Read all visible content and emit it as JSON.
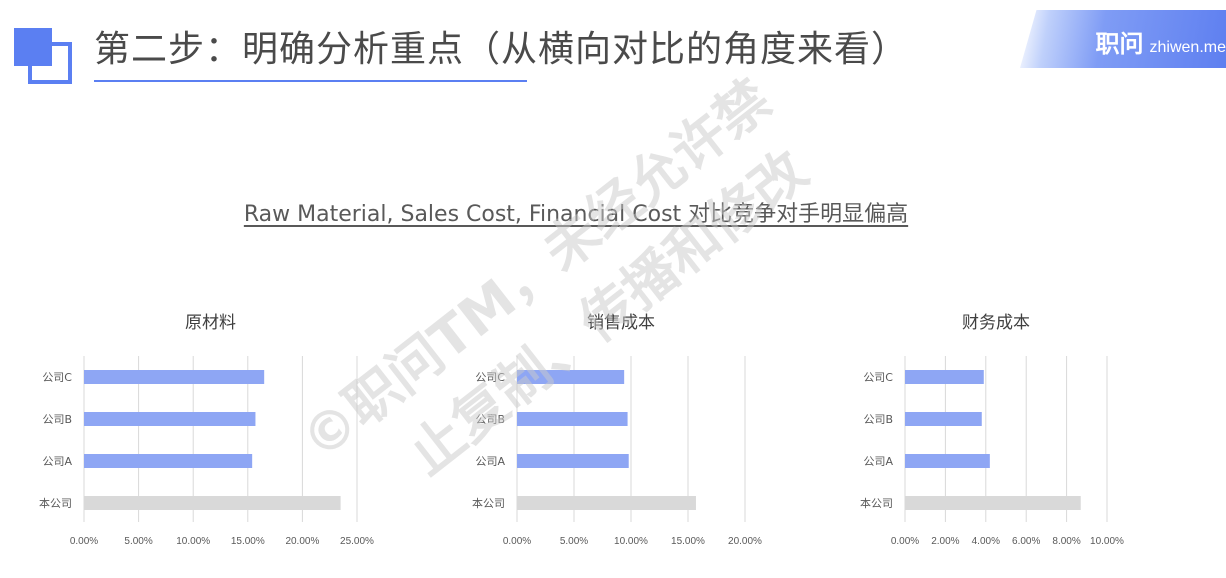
{
  "header": {
    "title": "第二步：明确分析重点（从横向对比的角度来看）",
    "brand_cn": "职问",
    "brand_en": "zhiwen.me"
  },
  "subtitle": "Raw Material, Sales Cost, Financial Cost 对比竞争对手明显偏高",
  "watermark": {
    "line1": "©职问TM，未经允许禁",
    "line2": "止复制、传播和修改"
  },
  "colors": {
    "accent": "#5b7ff2",
    "competitor_bar": "#8ea6f4",
    "own_bar": "#d9d9d9",
    "gridline": "#d9d9d9",
    "text": "#595959"
  },
  "chart_data": [
    {
      "type": "bar",
      "title": "原材料",
      "categories": [
        "公司C",
        "公司B",
        "公司A",
        "本公司"
      ],
      "values": [
        16.5,
        15.7,
        15.4,
        23.5
      ],
      "unit": "%",
      "xlim": [
        0,
        25
      ],
      "ticks": [
        0,
        5,
        10,
        15,
        20,
        25
      ],
      "tick_labels": [
        "0.00%",
        "5.00%",
        "10.00%",
        "15.00%",
        "20.00%",
        "25.00%"
      ],
      "grid": true,
      "orientation": "horizontal"
    },
    {
      "type": "bar",
      "title": "销售成本",
      "categories": [
        "公司C",
        "公司B",
        "公司A",
        "本公司"
      ],
      "values": [
        9.4,
        9.7,
        9.8,
        15.7
      ],
      "unit": "%",
      "xlim": [
        0,
        20
      ],
      "ticks": [
        0,
        5,
        10,
        15,
        20
      ],
      "tick_labels": [
        "0.00%",
        "5.00%",
        "10.00%",
        "15.00%",
        "20.00%"
      ],
      "grid": true,
      "orientation": "horizontal"
    },
    {
      "type": "bar",
      "title": "财务成本",
      "categories": [
        "公司C",
        "公司B",
        "公司A",
        "本公司"
      ],
      "values": [
        3.9,
        3.8,
        4.2,
        8.7
      ],
      "unit": "%",
      "xlim": [
        0,
        10
      ],
      "ticks": [
        0,
        2,
        4,
        6,
        8,
        10
      ],
      "tick_labels": [
        "0.00%",
        "2.00%",
        "4.00%",
        "6.00%",
        "8.00%",
        "10.00%"
      ],
      "grid": true,
      "orientation": "horizontal"
    }
  ]
}
